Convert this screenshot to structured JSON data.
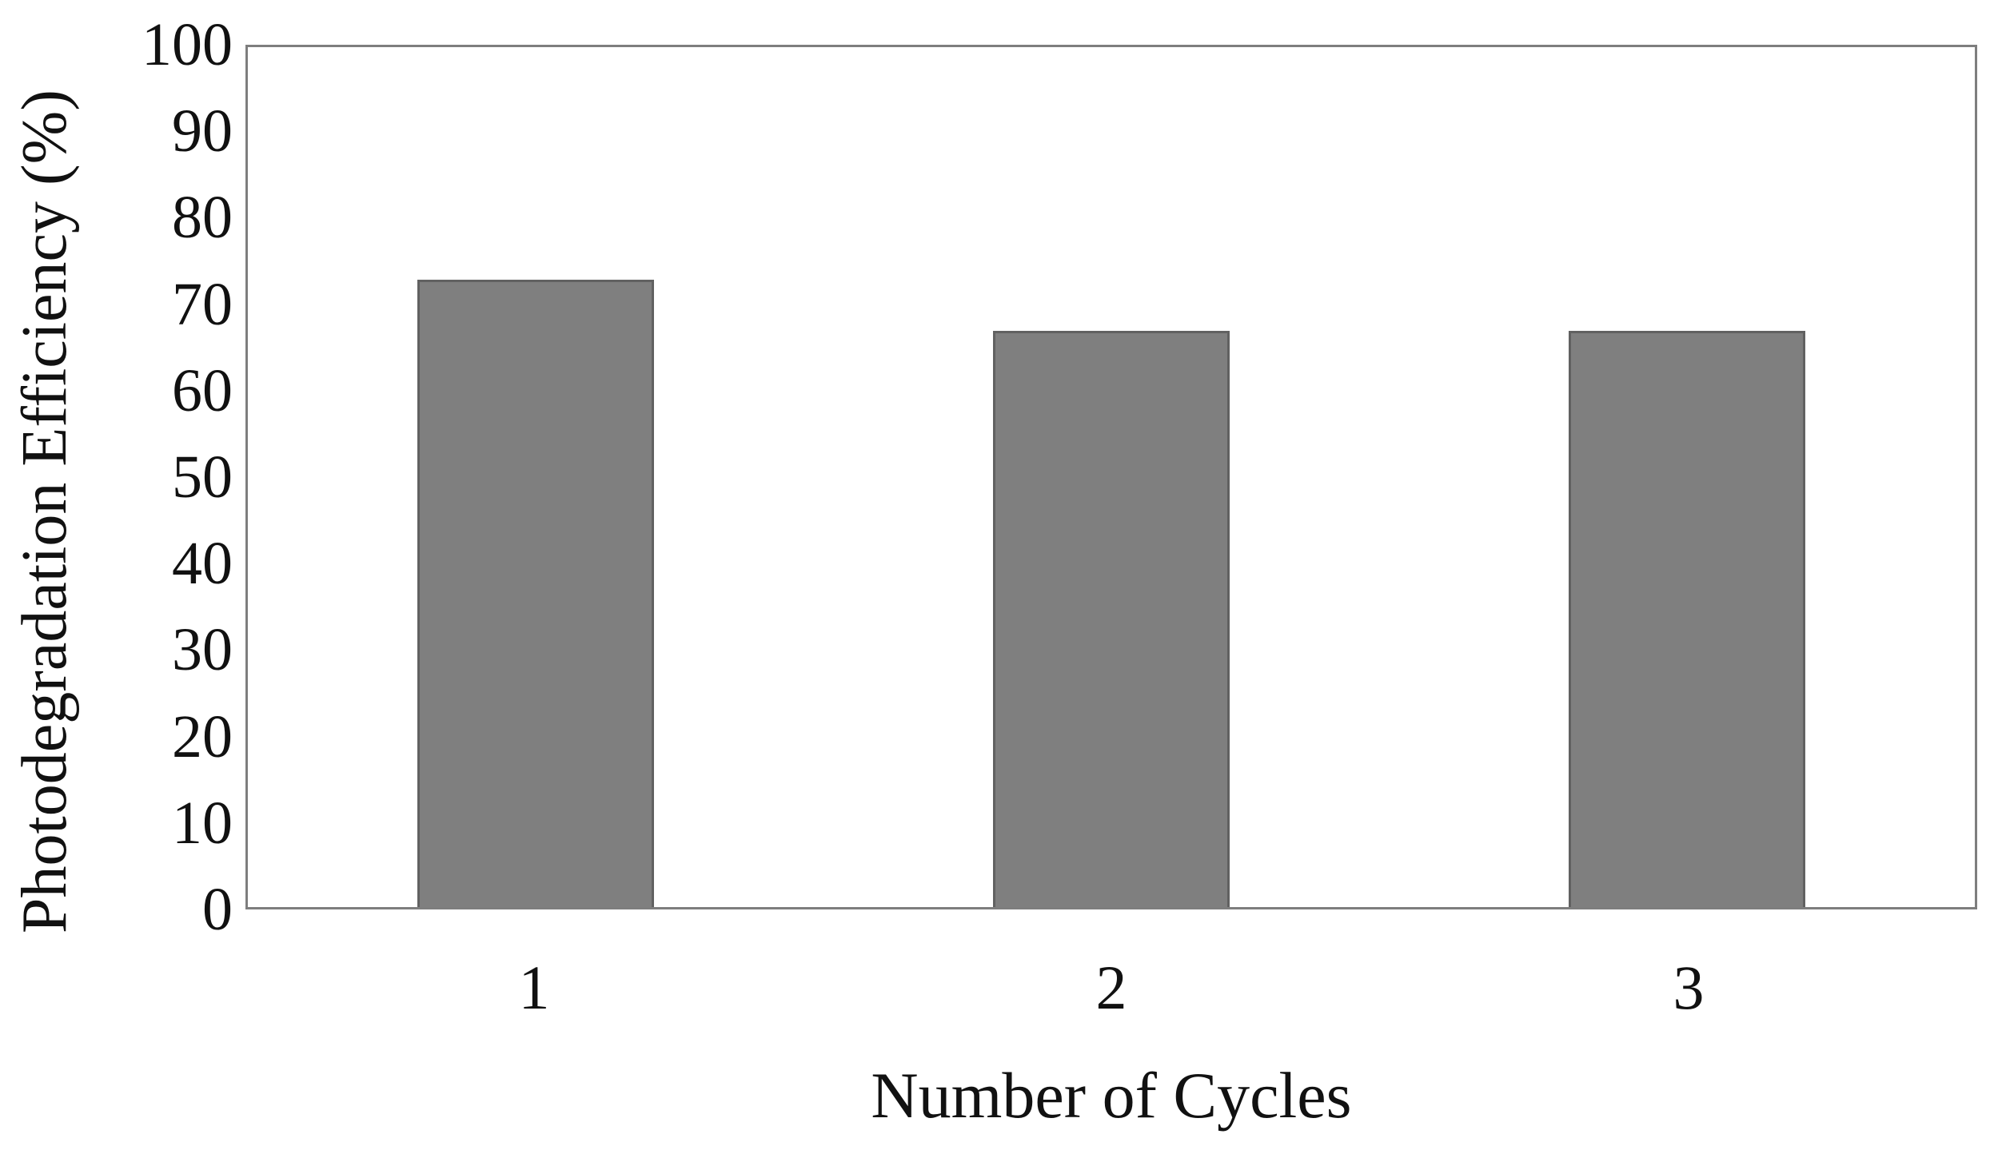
{
  "chart_data": {
    "type": "bar",
    "categories": [
      "1",
      "2",
      "3"
    ],
    "values": [
      73,
      67,
      67
    ],
    "title": "",
    "xlabel": "Number of Cycles",
    "ylabel": "Photodegradation Efficiency (%)",
    "ylim": [
      0,
      100
    ],
    "yticks": [
      0,
      10,
      20,
      30,
      40,
      50,
      60,
      70,
      80,
      90,
      100
    ],
    "grid": false,
    "legend": "none",
    "bar_fill_color": "#7f7f7f",
    "bar_border_color": "#616161",
    "plot_border_color": "#7e7e7e",
    "text_color": "#111111",
    "background_color": "#ffffff"
  }
}
